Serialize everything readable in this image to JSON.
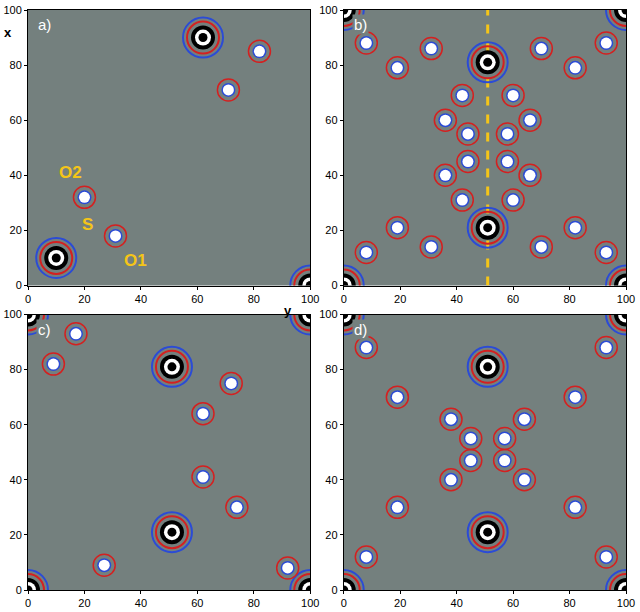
{
  "chart_data": [
    {
      "type": "scatter",
      "panel": "a)",
      "xlim": [
        0,
        100
      ],
      "ylim": [
        0,
        100
      ],
      "xticks": [
        0,
        20,
        40,
        60,
        80,
        100
      ],
      "yticks": [
        0,
        20,
        40,
        60,
        80,
        100
      ],
      "grid": false,
      "axis_labels": {
        "horizontal": "y",
        "vertical": "x"
      },
      "series": [
        {
          "marker": "ring",
          "x": [
            10,
            62,
            100
          ],
          "y": [
            10,
            90,
            0
          ]
        },
        {
          "marker": "dot",
          "x": [
            20,
            31,
            71,
            82
          ],
          "y": [
            32,
            18,
            71,
            85
          ]
        }
      ],
      "annotations": [
        {
          "text": "O2",
          "x": 15,
          "y": 41
        },
        {
          "text": "S",
          "x": 21,
          "y": 22
        },
        {
          "text": "O1",
          "x": 38,
          "y": 9
        }
      ]
    },
    {
      "type": "scatter",
      "panel": "b)",
      "xlim": [
        0,
        100
      ],
      "ylim": [
        0,
        100
      ],
      "xticks": [
        0,
        20,
        40,
        60,
        80,
        100
      ],
      "yticks": [
        0,
        20,
        40,
        60,
        80,
        100
      ],
      "grid": false,
      "series": [
        {
          "marker": "ring",
          "x": [
            51,
            51,
            0,
            100,
            0,
            100
          ],
          "y": [
            81,
            21,
            0,
            0,
            100,
            100
          ]
        },
        {
          "marker": "dot",
          "x": [
            8,
            93,
            19,
            82,
            31,
            70,
            42,
            60,
            36,
            66,
            44,
            58,
            44,
            58,
            36,
            66,
            42,
            60,
            31,
            70,
            8,
            93,
            19,
            82
          ],
          "y": [
            88,
            88,
            79,
            79,
            86,
            86,
            69,
            69,
            60,
            60,
            55,
            55,
            45,
            45,
            40,
            40,
            31,
            31,
            14,
            14,
            12,
            12,
            21,
            21
          ]
        }
      ],
      "vline": {
        "at": 51,
        "color": "#f5c518",
        "line_style": "dash"
      }
    },
    {
      "type": "scatter",
      "panel": "c)",
      "xlim": [
        0,
        100
      ],
      "ylim": [
        0,
        100
      ],
      "xticks": [
        0,
        20,
        40,
        60,
        80,
        100
      ],
      "yticks": [
        0,
        20,
        40,
        60,
        80,
        100
      ],
      "grid": false,
      "series": [
        {
          "marker": "ring",
          "x": [
            51,
            51,
            0,
            100,
            0,
            100
          ],
          "y": [
            81,
            21,
            0,
            0,
            100,
            100
          ]
        },
        {
          "marker": "dot",
          "x": [
            9,
            17,
            62,
            62,
            74,
            72,
            27,
            92
          ],
          "y": [
            82,
            93,
            64,
            41,
            30,
            75,
            9,
            8
          ]
        }
      ]
    },
    {
      "type": "scatter",
      "panel": "d)",
      "xlim": [
        0,
        100
      ],
      "ylim": [
        0,
        100
      ],
      "xticks": [
        0,
        20,
        40,
        60,
        80,
        100
      ],
      "yticks": [
        0,
        20,
        40,
        60,
        80,
        100
      ],
      "grid": false,
      "series": [
        {
          "marker": "ring",
          "x": [
            51,
            51,
            0,
            100,
            0,
            100
          ],
          "y": [
            81,
            21,
            0,
            0,
            100,
            100
          ]
        },
        {
          "marker": "dot",
          "x": [
            8,
            93,
            8,
            93,
            38,
            64,
            38,
            64,
            45,
            57,
            45,
            57,
            19,
            82,
            19,
            82
          ],
          "y": [
            88,
            88,
            12,
            12,
            62,
            62,
            40,
            40,
            55,
            55,
            47,
            47,
            30,
            30,
            70,
            70
          ]
        }
      ]
    }
  ]
}
